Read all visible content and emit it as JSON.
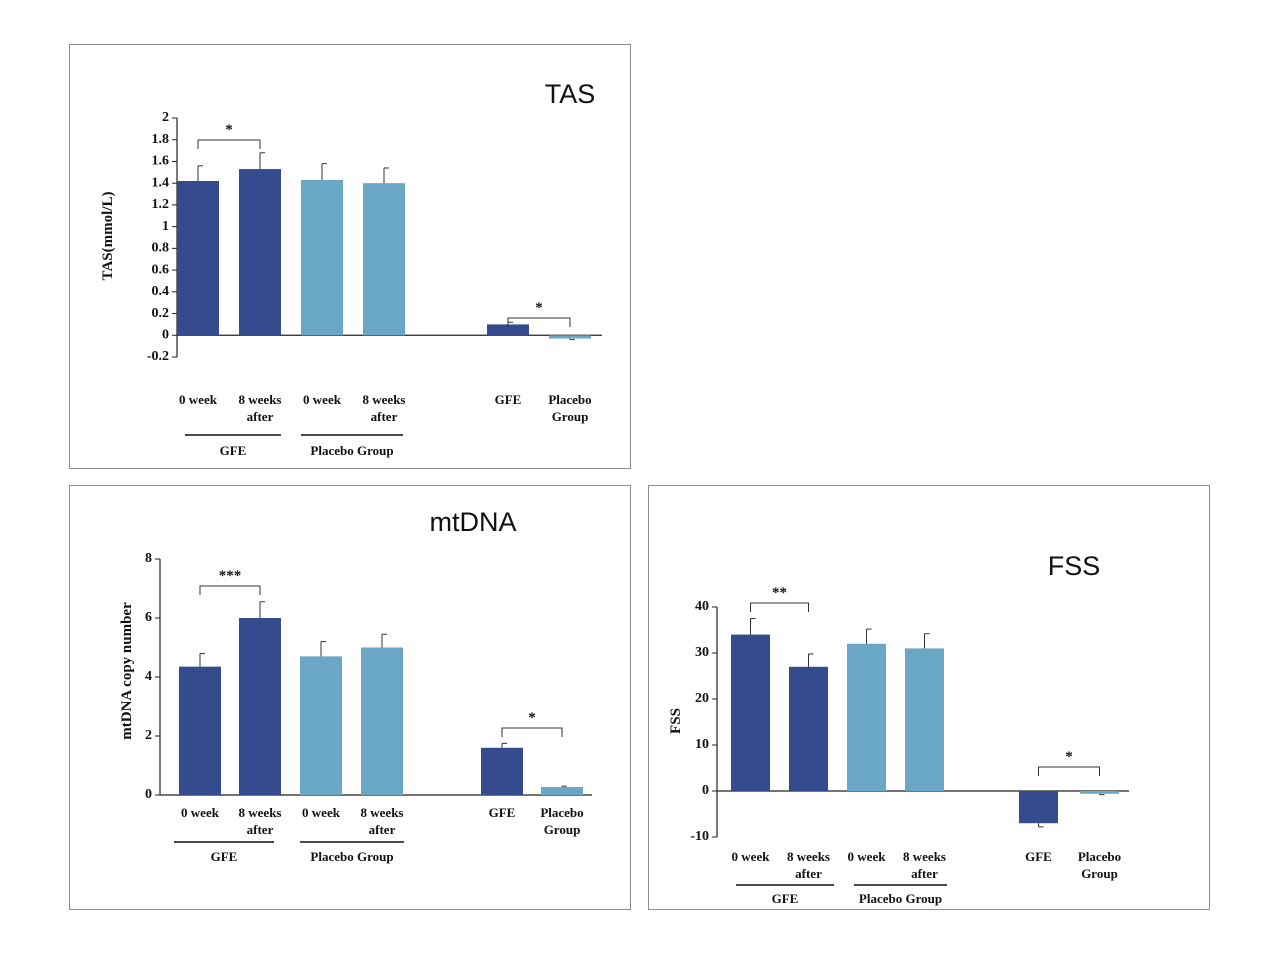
{
  "colors": {
    "gfe": "#344b8d",
    "placebo": "#6aa6c6"
  },
  "chart_data": [
    {
      "type": "bar",
      "title": "TAS",
      "ylabel": "TAS(mmol/L)",
      "ylim": [
        -0.2,
        2
      ],
      "yticks": [
        "2",
        "1.8",
        "1.6",
        "1.4",
        "1.2",
        "1",
        "0.8",
        "0.6",
        "0.4",
        "0.2",
        "0",
        "-0.2"
      ],
      "categories": [
        [
          "0 week"
        ],
        [
          "8 weeks",
          "after"
        ],
        [
          "0 week"
        ],
        [
          "8 weeks",
          "after"
        ],
        [
          "GFE"
        ],
        [
          "Placebo",
          "Group"
        ]
      ],
      "values": [
        1.42,
        1.53,
        1.43,
        1.4,
        0.1,
        -0.03
      ],
      "errors": [
        0.14,
        0.15,
        0.15,
        0.14,
        0.02,
        0.01
      ],
      "groups": [
        "GFE",
        "Placebo Group"
      ],
      "significance": [
        "*",
        "*"
      ],
      "grid": false
    },
    {
      "type": "bar",
      "title": "mtDNA",
      "ylabel": "mtDNA copy number",
      "ylim": [
        0,
        8
      ],
      "yticks": [
        "8",
        "6",
        "4",
        "2",
        "0"
      ],
      "categories": [
        [
          "0 week"
        ],
        [
          "8 weeks",
          "after"
        ],
        [
          "0 week"
        ],
        [
          "8 weeks",
          "after"
        ],
        [
          "GFE"
        ],
        [
          "Placebo",
          "Group"
        ]
      ],
      "values": [
        4.35,
        6.0,
        4.7,
        5.0,
        1.6,
        0.27
      ],
      "errors": [
        0.45,
        0.55,
        0.5,
        0.45,
        0.15,
        0.03
      ],
      "groups": [
        "GFE",
        "Placebo Group"
      ],
      "significance": [
        "***",
        "*"
      ],
      "grid": false
    },
    {
      "type": "bar",
      "title": "FSS",
      "ylabel": "FSS",
      "ylim": [
        -10,
        40
      ],
      "yticks": [
        "40",
        "30",
        "20",
        "10",
        "0",
        "-10"
      ],
      "categories": [
        [
          "0 week"
        ],
        [
          "8 weeks",
          "after"
        ],
        [
          "0 week"
        ],
        [
          "8 weeks",
          "after"
        ],
        [
          "GFE"
        ],
        [
          "Placebo",
          "Group"
        ]
      ],
      "values": [
        34,
        27,
        32,
        31,
        -7,
        -0.6
      ],
      "errors": [
        3.5,
        2.8,
        3.2,
        3.2,
        0.8,
        0.2
      ],
      "groups": [
        "GFE",
        "Placebo Group"
      ],
      "significance": [
        "**",
        "*"
      ],
      "grid": false
    }
  ]
}
